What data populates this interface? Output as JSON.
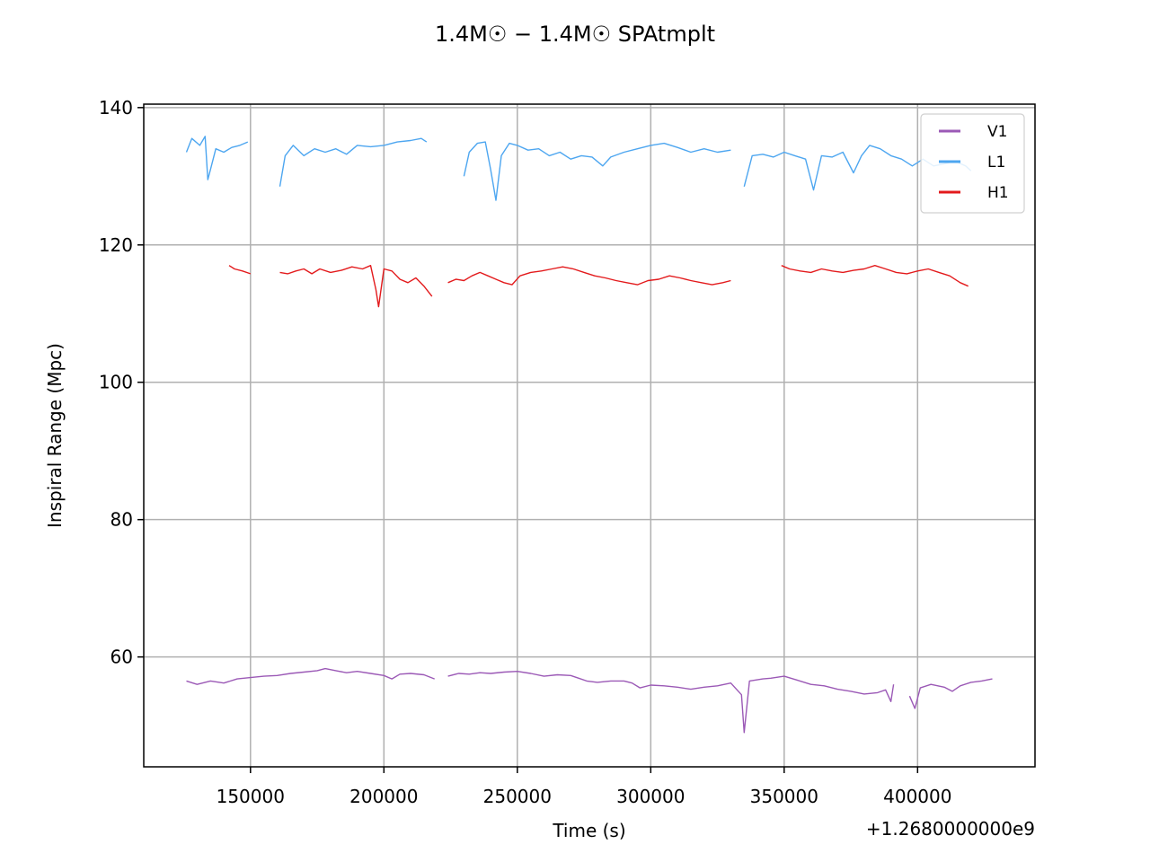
{
  "chart_data": {
    "type": "line",
    "title": "1.4M☉ − 1.4M☉ SPAtmplt",
    "xlabel": "Time (s)",
    "ylabel": "Inspiral Range (Mpc)",
    "x_offset_text": "+1.2680000000e9",
    "xlim": [
      110000,
      444000
    ],
    "ylim": [
      44,
      140.5
    ],
    "x_ticks": [
      150000,
      200000,
      250000,
      300000,
      350000,
      400000
    ],
    "y_ticks": [
      60,
      80,
      100,
      120,
      140
    ],
    "grid": true,
    "legend_position": "top-right",
    "series": [
      {
        "name": "V1",
        "color": "#9b59b6",
        "points": [
          [
            126000,
            56.5
          ],
          [
            130000,
            56.0
          ],
          [
            135000,
            56.5
          ],
          [
            140000,
            56.2
          ],
          [
            145000,
            56.8
          ],
          [
            150000,
            57.0
          ],
          [
            155000,
            57.2
          ],
          [
            160000,
            57.3
          ],
          [
            165000,
            57.6
          ],
          [
            170000,
            57.8
          ],
          [
            175000,
            58.0
          ],
          [
            178000,
            58.3
          ],
          [
            182000,
            58.0
          ],
          [
            186000,
            57.7
          ],
          [
            190000,
            57.9
          ],
          [
            195000,
            57.6
          ],
          [
            200000,
            57.3
          ],
          [
            203000,
            56.8
          ],
          [
            206000,
            57.5
          ],
          [
            210000,
            57.6
          ],
          [
            215000,
            57.4
          ],
          [
            219000,
            56.8
          ],
          [
            224000,
            57.2
          ],
          [
            228000,
            57.6
          ],
          [
            232000,
            57.5
          ],
          [
            236000,
            57.7
          ],
          [
            240000,
            57.6
          ],
          [
            245000,
            57.8
          ],
          [
            250000,
            57.9
          ],
          [
            255000,
            57.6
          ],
          [
            260000,
            57.2
          ],
          [
            265000,
            57.4
          ],
          [
            270000,
            57.3
          ],
          [
            273000,
            56.9
          ],
          [
            276000,
            56.5
          ],
          [
            280000,
            56.3
          ],
          [
            285000,
            56.5
          ],
          [
            290000,
            56.5
          ],
          [
            293000,
            56.2
          ],
          [
            296000,
            55.5
          ],
          [
            300000,
            55.9
          ],
          [
            305000,
            55.8
          ],
          [
            310000,
            55.6
          ],
          [
            315000,
            55.3
          ],
          [
            320000,
            55.6
          ],
          [
            325000,
            55.8
          ],
          [
            330000,
            56.2
          ],
          [
            334000,
            54.5
          ],
          [
            335000,
            49.0
          ],
          [
            337000,
            56.5
          ],
          [
            342000,
            56.8
          ],
          [
            345000,
            56.9
          ],
          [
            350000,
            57.2
          ],
          [
            355000,
            56.6
          ],
          [
            360000,
            56.0
          ],
          [
            365000,
            55.8
          ],
          [
            370000,
            55.3
          ],
          [
            375000,
            55.0
          ],
          [
            380000,
            54.6
          ],
          [
            385000,
            54.8
          ],
          [
            388000,
            55.2
          ],
          [
            390000,
            53.5
          ],
          [
            391000,
            56.0
          ],
          [
            397000,
            54.3
          ],
          [
            399000,
            52.5
          ],
          [
            401000,
            55.5
          ],
          [
            405000,
            56.0
          ],
          [
            410000,
            55.6
          ],
          [
            413000,
            55.0
          ],
          [
            416000,
            55.8
          ],
          [
            420000,
            56.3
          ],
          [
            424000,
            56.5
          ],
          [
            428000,
            56.8
          ]
        ],
        "gaps_after_x": [
          219000,
          391000
        ]
      },
      {
        "name": "L1",
        "color": "#4da6f0",
        "points": [
          [
            126000,
            133.5
          ],
          [
            128000,
            135.5
          ],
          [
            131000,
            134.5
          ],
          [
            133000,
            135.8
          ],
          [
            134000,
            129.5
          ],
          [
            135000,
            131.0
          ],
          [
            137000,
            134.0
          ],
          [
            140000,
            133.5
          ],
          [
            143000,
            134.2
          ],
          [
            146000,
            134.5
          ],
          [
            149000,
            135.0
          ],
          [
            161000,
            128.5
          ],
          [
            163000,
            133.0
          ],
          [
            166000,
            134.5
          ],
          [
            170000,
            133.0
          ],
          [
            174000,
            134.0
          ],
          [
            178000,
            133.5
          ],
          [
            182000,
            134.0
          ],
          [
            186000,
            133.2
          ],
          [
            190000,
            134.5
          ],
          [
            195000,
            134.3
          ],
          [
            200000,
            134.5
          ],
          [
            205000,
            135.0
          ],
          [
            210000,
            135.2
          ],
          [
            214000,
            135.5
          ],
          [
            216000,
            135.0
          ],
          [
            230000,
            130.0
          ],
          [
            232000,
            133.5
          ],
          [
            235000,
            134.8
          ],
          [
            238000,
            135.0
          ],
          [
            240000,
            131.0
          ],
          [
            242000,
            126.5
          ],
          [
            244000,
            133.0
          ],
          [
            247000,
            134.8
          ],
          [
            250000,
            134.5
          ],
          [
            254000,
            133.8
          ],
          [
            258000,
            134.0
          ],
          [
            262000,
            133.0
          ],
          [
            266000,
            133.5
          ],
          [
            270000,
            132.5
          ],
          [
            274000,
            133.0
          ],
          [
            278000,
            132.8
          ],
          [
            282000,
            131.5
          ],
          [
            285000,
            132.8
          ],
          [
            290000,
            133.5
          ],
          [
            295000,
            134.0
          ],
          [
            300000,
            134.5
          ],
          [
            305000,
            134.8
          ],
          [
            310000,
            134.2
          ],
          [
            315000,
            133.5
          ],
          [
            320000,
            134.0
          ],
          [
            325000,
            133.5
          ],
          [
            330000,
            133.8
          ],
          [
            335000,
            128.5
          ],
          [
            338000,
            133.0
          ],
          [
            342000,
            133.2
          ],
          [
            346000,
            132.8
          ],
          [
            350000,
            133.5
          ],
          [
            354000,
            133.0
          ],
          [
            358000,
            132.5
          ],
          [
            361000,
            128.0
          ],
          [
            364000,
            133.0
          ],
          [
            368000,
            132.8
          ],
          [
            372000,
            133.5
          ],
          [
            376000,
            130.5
          ],
          [
            379000,
            133.0
          ],
          [
            382000,
            134.5
          ],
          [
            386000,
            134.0
          ],
          [
            390000,
            133.0
          ],
          [
            394000,
            132.5
          ],
          [
            398000,
            131.5
          ],
          [
            402000,
            132.5
          ],
          [
            406000,
            131.5
          ],
          [
            410000,
            131.8
          ],
          [
            414000,
            132.2
          ],
          [
            418000,
            131.5
          ],
          [
            420000,
            130.8
          ]
        ],
        "gaps_after_x": [
          149000,
          216000,
          330000
        ]
      },
      {
        "name": "H1",
        "color": "#e31a1c",
        "points": [
          [
            142000,
            117.0
          ],
          [
            144000,
            116.5
          ],
          [
            147000,
            116.2
          ],
          [
            150000,
            115.8
          ],
          [
            161000,
            116.0
          ],
          [
            164000,
            115.8
          ],
          [
            167000,
            116.2
          ],
          [
            170000,
            116.5
          ],
          [
            173000,
            115.8
          ],
          [
            176000,
            116.5
          ],
          [
            180000,
            116.0
          ],
          [
            184000,
            116.3
          ],
          [
            188000,
            116.8
          ],
          [
            192000,
            116.5
          ],
          [
            195000,
            117.0
          ],
          [
            197000,
            113.5
          ],
          [
            198000,
            111.0
          ],
          [
            200000,
            116.5
          ],
          [
            203000,
            116.2
          ],
          [
            206000,
            115.0
          ],
          [
            209000,
            114.5
          ],
          [
            212000,
            115.2
          ],
          [
            215000,
            114.0
          ],
          [
            218000,
            112.5
          ],
          [
            224000,
            114.5
          ],
          [
            227000,
            115.0
          ],
          [
            230000,
            114.8
          ],
          [
            233000,
            115.5
          ],
          [
            236000,
            116.0
          ],
          [
            239000,
            115.5
          ],
          [
            242000,
            115.0
          ],
          [
            245000,
            114.5
          ],
          [
            248000,
            114.2
          ],
          [
            251000,
            115.5
          ],
          [
            255000,
            116.0
          ],
          [
            259000,
            116.2
          ],
          [
            263000,
            116.5
          ],
          [
            267000,
            116.8
          ],
          [
            271000,
            116.5
          ],
          [
            275000,
            116.0
          ],
          [
            279000,
            115.5
          ],
          [
            283000,
            115.2
          ],
          [
            287000,
            114.8
          ],
          [
            291000,
            114.5
          ],
          [
            295000,
            114.2
          ],
          [
            299000,
            114.8
          ],
          [
            303000,
            115.0
          ],
          [
            307000,
            115.5
          ],
          [
            311000,
            115.2
          ],
          [
            315000,
            114.8
          ],
          [
            319000,
            114.5
          ],
          [
            323000,
            114.2
          ],
          [
            327000,
            114.5
          ],
          [
            330000,
            114.8
          ],
          [
            349000,
            117.0
          ],
          [
            352000,
            116.5
          ],
          [
            356000,
            116.2
          ],
          [
            360000,
            116.0
          ],
          [
            364000,
            116.5
          ],
          [
            368000,
            116.2
          ],
          [
            372000,
            116.0
          ],
          [
            376000,
            116.3
          ],
          [
            380000,
            116.5
          ],
          [
            384000,
            117.0
          ],
          [
            388000,
            116.5
          ],
          [
            392000,
            116.0
          ],
          [
            396000,
            115.8
          ],
          [
            400000,
            116.2
          ],
          [
            404000,
            116.5
          ],
          [
            408000,
            116.0
          ],
          [
            412000,
            115.5
          ],
          [
            416000,
            114.5
          ],
          [
            419000,
            114.0
          ]
        ],
        "gaps_after_x": [
          150000,
          218000,
          330000
        ]
      }
    ]
  }
}
